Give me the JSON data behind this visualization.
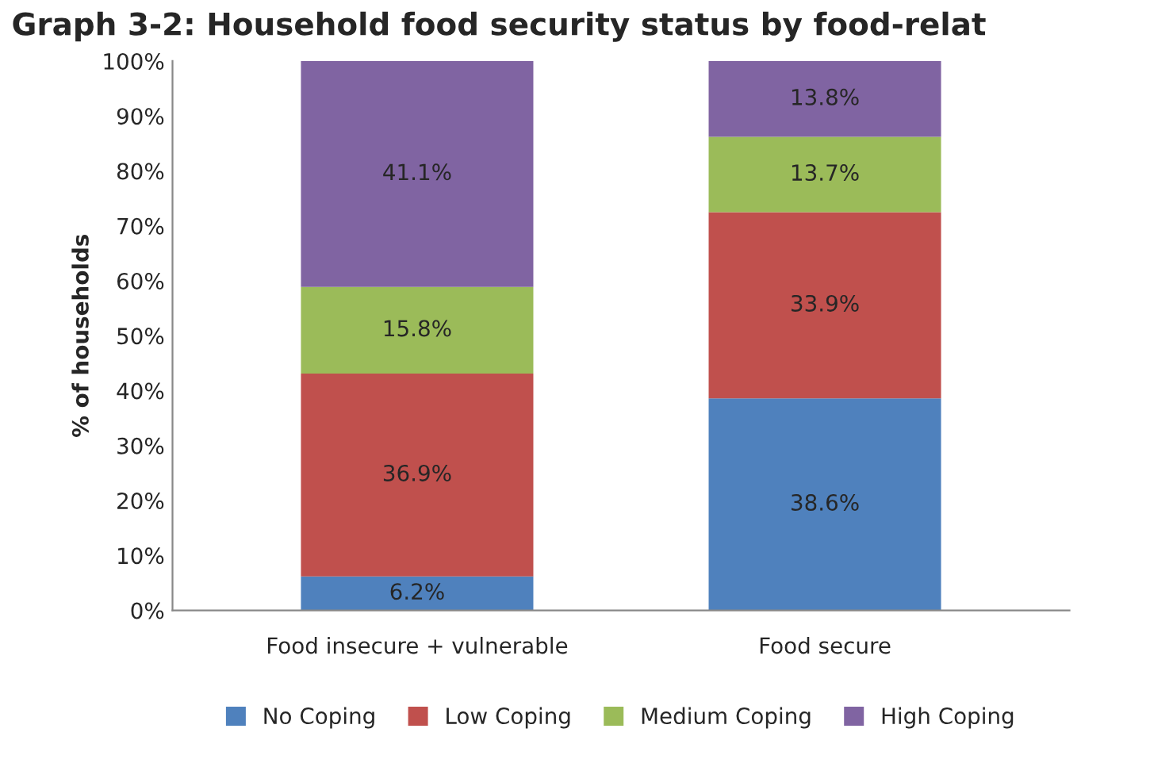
{
  "chart_data": {
    "type": "bar",
    "stacked": true,
    "title": "Graph 3-2: Household food security status by food-relat",
    "ylabel": "% of households",
    "categories": [
      "Food insecure + vulnerable",
      "Food secure"
    ],
    "series": [
      {
        "name": "No Coping",
        "color": "#4f81bd",
        "values": [
          6.2,
          38.6
        ],
        "value_labels": [
          "6.2%",
          "38.6%"
        ]
      },
      {
        "name": "Low Coping",
        "color": "#c0504d",
        "values": [
          36.9,
          33.9
        ],
        "value_labels": [
          "36.9%",
          "33.9%"
        ]
      },
      {
        "name": "Medium Coping",
        "color": "#9bbb59",
        "values": [
          15.8,
          13.7
        ],
        "value_labels": [
          "15.8%",
          "13.7%"
        ]
      },
      {
        "name": "High Coping",
        "color": "#8064a2",
        "values": [
          41.1,
          13.8
        ],
        "value_labels": [
          "41.1%",
          "13.8%"
        ]
      }
    ],
    "ylim": [
      0,
      100
    ],
    "yticks": [
      {
        "value": 0,
        "label": "0%"
      },
      {
        "value": 10,
        "label": "10%"
      },
      {
        "value": 20,
        "label": "20%"
      },
      {
        "value": 30,
        "label": "30%"
      },
      {
        "value": 40,
        "label": "40%"
      },
      {
        "value": 50,
        "label": "50%"
      },
      {
        "value": 60,
        "label": "60%"
      },
      {
        "value": 70,
        "label": "70%"
      },
      {
        "value": 80,
        "label": "80%"
      },
      {
        "value": 90,
        "label": "90%"
      },
      {
        "value": 100,
        "label": "100%"
      }
    ],
    "grid": false,
    "legend": "bottom"
  }
}
